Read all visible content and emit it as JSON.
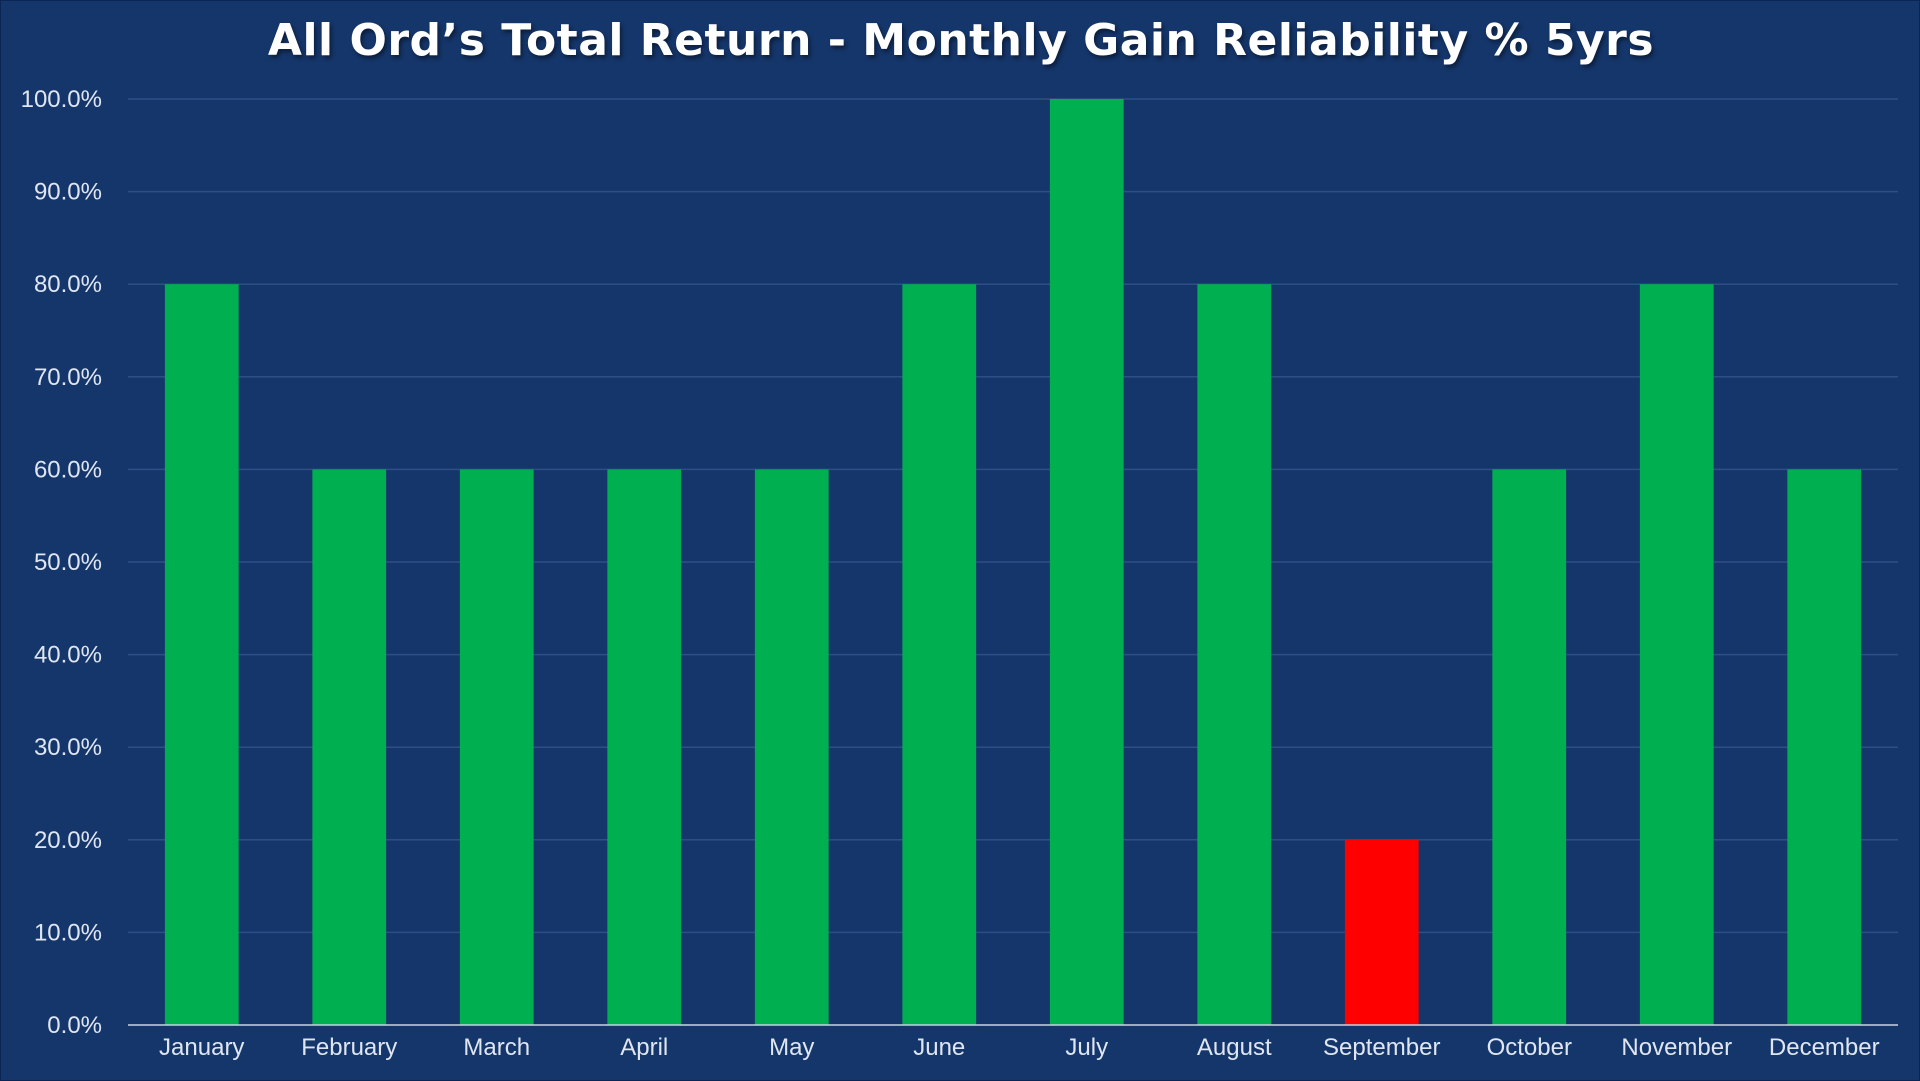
{
  "chart_data": {
    "type": "bar",
    "title": "All Ord’s Total Return - Monthly Gain Reliability % 5yrs",
    "xlabel": "",
    "ylabel": "",
    "categories": [
      "January",
      "February",
      "March",
      "April",
      "May",
      "June",
      "July",
      "August",
      "September",
      "October",
      "November",
      "December"
    ],
    "values": [
      80,
      60,
      60,
      60,
      60,
      80,
      100,
      80,
      20,
      60,
      80,
      60
    ],
    "ylim": [
      0,
      100
    ],
    "y_ticks": [
      0,
      10,
      20,
      30,
      40,
      50,
      60,
      70,
      80,
      90,
      100
    ],
    "y_tick_labels": [
      "0.0%",
      "10.0%",
      "20.0%",
      "30.0%",
      "40.0%",
      "50.0%",
      "60.0%",
      "70.0%",
      "80.0%",
      "90.0%",
      "100.0%"
    ],
    "grid": true,
    "legend": "none",
    "colors": {
      "background": "#15366b",
      "gain_bar": "#00b050",
      "low_bar": "#ff0000",
      "gridline": "#2e4f86",
      "axis_line": "#c9d3e3",
      "text": "#dfe6f2"
    },
    "bar_color_rule": "values below 50 shown in red, otherwise green"
  }
}
